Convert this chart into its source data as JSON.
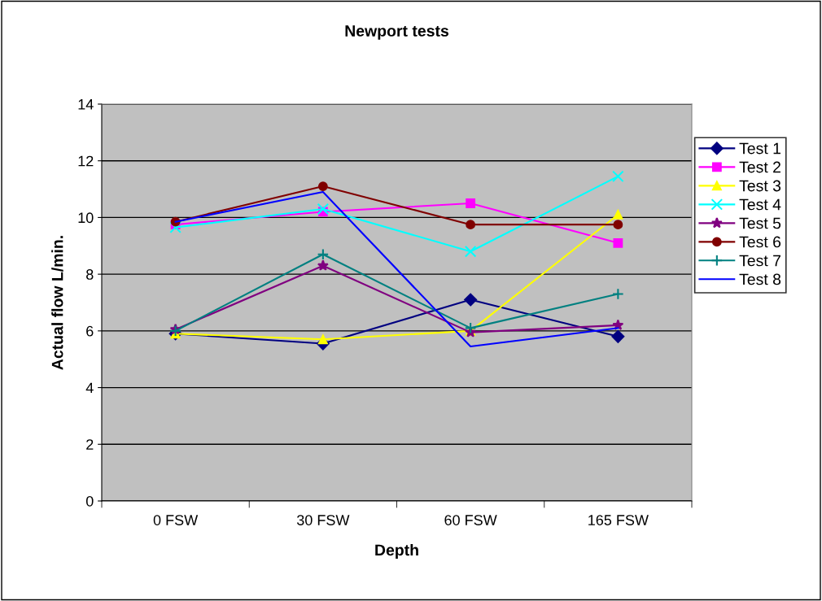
{
  "chart_data": {
    "type": "line",
    "title": "Newport tests",
    "xlabel": "Depth",
    "ylabel": "Actual flow L/min.",
    "categories": [
      "0 FSW",
      "30 FSW",
      "60 FSW",
      "165 FSW"
    ],
    "series": [
      {
        "name": "Test 1",
        "color": "#000080",
        "marker": "diamond",
        "values": [
          5.9,
          5.55,
          7.1,
          5.8
        ]
      },
      {
        "name": "Test 2",
        "color": "#ff00ff",
        "marker": "square",
        "values": [
          9.75,
          10.2,
          10.5,
          9.1
        ]
      },
      {
        "name": "Test 3",
        "color": "#ffff00",
        "marker": "triangle",
        "values": [
          5.9,
          5.7,
          6.0,
          10.1
        ]
      },
      {
        "name": "Test 4",
        "color": "#00ffff",
        "marker": "cross",
        "values": [
          9.65,
          10.3,
          8.8,
          11.45
        ]
      },
      {
        "name": "Test 5",
        "color": "#800080",
        "marker": "star",
        "values": [
          6.05,
          8.3,
          5.95,
          6.2
        ]
      },
      {
        "name": "Test 6",
        "color": "#800000",
        "marker": "circle",
        "values": [
          9.85,
          11.1,
          9.75,
          9.75
        ]
      },
      {
        "name": "Test 7",
        "color": "#008080",
        "marker": "plus",
        "values": [
          6.0,
          8.7,
          6.1,
          7.3
        ]
      },
      {
        "name": "Test 8",
        "color": "#0000ff",
        "marker": "none",
        "values": [
          9.85,
          10.9,
          5.45,
          6.1
        ]
      }
    ],
    "ylim": [
      0,
      14
    ],
    "yticks": [
      0,
      2,
      4,
      6,
      8,
      10,
      12,
      14
    ],
    "grid": "y",
    "legend": "right",
    "line_style": "solid"
  }
}
